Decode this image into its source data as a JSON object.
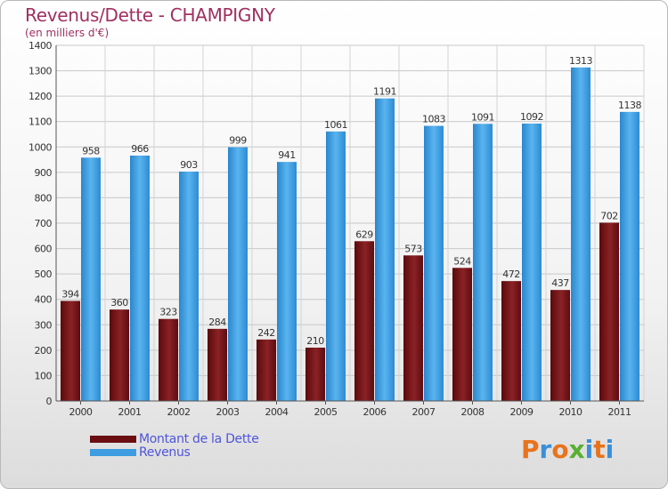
{
  "title": "Revenus/Dette - CHAMPIGNY",
  "subtitle": "(en milliers d'€)",
  "logo": "Proxiti",
  "colors": {
    "title": "#a03060",
    "debt_bar": "#7a1418",
    "revenue_bar": "#3d9de0",
    "legend_text": "#4f55d8",
    "grid": "#cccccc"
  },
  "chart_data": {
    "type": "bar",
    "categories": [
      "2000",
      "2001",
      "2002",
      "2003",
      "2004",
      "2005",
      "2006",
      "2007",
      "2008",
      "2009",
      "2010",
      "2011"
    ],
    "series": [
      {
        "name": "Montant de la Dette",
        "values": [
          394,
          360,
          323,
          284,
          242,
          210,
          629,
          573,
          524,
          472,
          437,
          702
        ]
      },
      {
        "name": "Revenus",
        "values": [
          958,
          966,
          903,
          999,
          941,
          1061,
          1191,
          1083,
          1091,
          1092,
          1313,
          1138
        ]
      }
    ],
    "yticks": [
      0,
      100,
      200,
      300,
      400,
      500,
      600,
      700,
      800,
      900,
      1000,
      1100,
      1200,
      1300,
      1400
    ],
    "ylim": [
      0,
      1400
    ],
    "grid": true,
    "legend_position": "bottom-left"
  }
}
